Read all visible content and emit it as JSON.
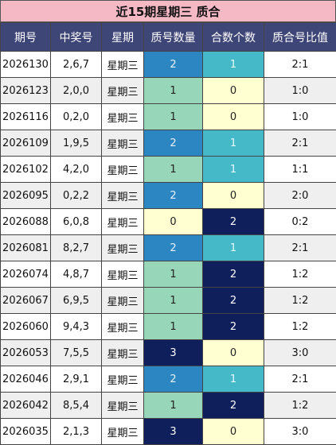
{
  "title": "近15期星期三 质合",
  "table": {
    "headers": [
      "期号",
      "中奖号",
      "星期",
      "质号数量",
      "合数个数",
      "质合号比值"
    ],
    "rows": [
      [
        "2026130",
        "2,6,7",
        "星期三",
        2,
        1,
        "2:1"
      ],
      [
        "2026123",
        "2,0,0",
        "星期三",
        1,
        0,
        "1:0"
      ],
      [
        "2026116",
        "0,2,0",
        "星期三",
        1,
        0,
        "1:0"
      ],
      [
        "2026109",
        "1,9,5",
        "星期三",
        2,
        1,
        "2:1"
      ],
      [
        "2026102",
        "4,2,0",
        "星期三",
        1,
        1,
        "1:1"
      ],
      [
        "2026095",
        "0,2,2",
        "星期三",
        2,
        0,
        "2:0"
      ],
      [
        "2026088",
        "6,0,8",
        "星期三",
        0,
        2,
        "0:2"
      ],
      [
        "2026081",
        "8,2,7",
        "星期三",
        2,
        1,
        "2:1"
      ],
      [
        "2026074",
        "4,8,7",
        "星期三",
        1,
        2,
        "1:2"
      ],
      [
        "2026067",
        "6,9,5",
        "星期三",
        1,
        2,
        "1:2"
      ],
      [
        "2026060",
        "9,4,3",
        "星期三",
        1,
        2,
        "1:2"
      ],
      [
        "2026053",
        "7,5,5",
        "星期三",
        3,
        0,
        "3:0"
      ],
      [
        "2026046",
        "2,9,1",
        "星期三",
        2,
        1,
        "2:1"
      ],
      [
        "2026042",
        "8,5,4",
        "星期三",
        1,
        2,
        "1:2"
      ],
      [
        "2026035",
        "2,1,3",
        "星期三",
        3,
        0,
        "3:0"
      ]
    ]
  }
}
